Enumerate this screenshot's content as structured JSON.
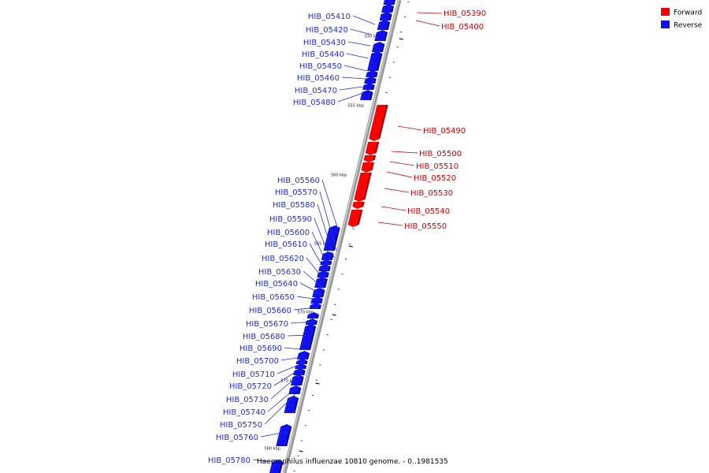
{
  "caption": "Haemophilus influenzae 10810 genome. - 0..1981535",
  "colors": {
    "forward": "#ff0000",
    "reverse": "#1010ee",
    "axis": "#9a9a9a",
    "leader": "#1f2fd0"
  },
  "legend": [
    {
      "label": "Forward",
      "color": "#ff0000"
    },
    {
      "label": "Reverse",
      "color": "#1010ee"
    }
  ],
  "ticks": [
    "550 kbp",
    "555 kbp",
    "560 kbp",
    "565 kbp",
    "570 kbp",
    "575 kbp",
    "580 kbp"
  ],
  "genes": {
    "forward": [
      "HIB_05390",
      "HIB_05400",
      "HIB_05490",
      "HIB_05500",
      "HIB_05510",
      "HIB_05520",
      "HIB_05530",
      "HIB_05540",
      "HIB_05550"
    ],
    "reverse": [
      "HIB_05410",
      "HIB_05420",
      "HIB_05430",
      "HIB_05440",
      "HIB_05450",
      "HIB_05460",
      "HIB_05470",
      "HIB_05480",
      "HIB_05560",
      "HIB_05570",
      "HIB_05580",
      "HIB_05590",
      "HIB_05600",
      "HIB_05610",
      "HIB_05620",
      "HIB_05630",
      "HIB_05640",
      "HIB_05650",
      "HIB_05660",
      "HIB_05670",
      "HIB_05680",
      "HIB_05690",
      "HIB_05700",
      "HIB_05710",
      "HIB_05720",
      "HIB_05730",
      "HIB_05740",
      "HIB_05750",
      "HIB_05760",
      "HIB_05780"
    ]
  }
}
